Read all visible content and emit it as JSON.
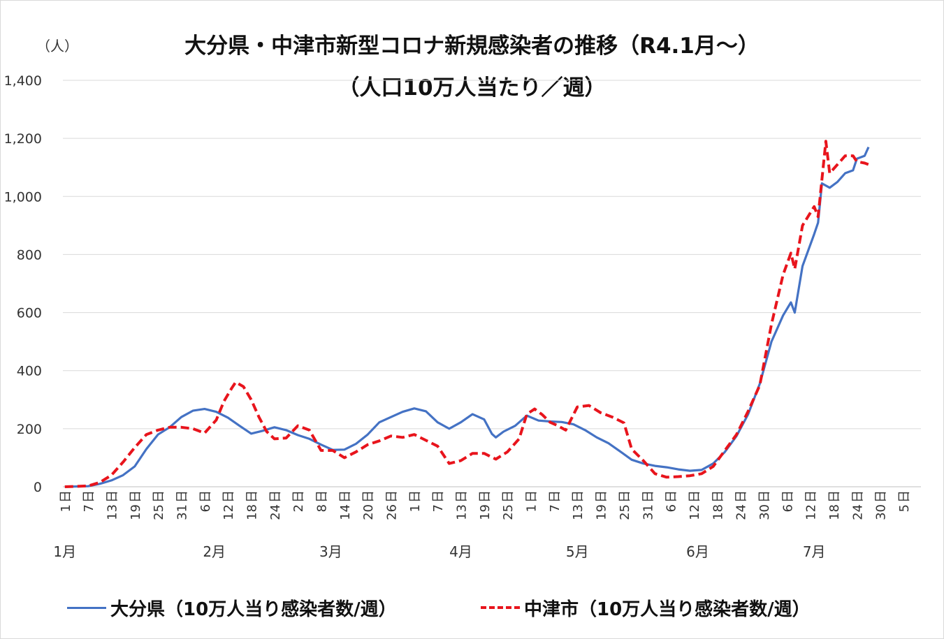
{
  "title_line1": "大分県・中津市新型コロナ新規感染者の推移（R4.1月～）",
  "title_line2": "（人口10万人当たり／週）",
  "y_unit": "（人）",
  "colors": {
    "oita": "#4472c4",
    "nakatsu": "#e8141c",
    "grid": "#d9d9d9",
    "axis": "#bfbfbf"
  },
  "chart_data": {
    "type": "line",
    "ylim": [
      0,
      1400
    ],
    "yticks": [
      "0",
      "200",
      "400",
      "600",
      "800",
      "1,000",
      "1,200",
      "1,400"
    ],
    "ytick_values": [
      0,
      200,
      400,
      600,
      800,
      1000,
      1200,
      1400
    ],
    "x_tick_labels": [
      "1",
      "7",
      "13",
      "19",
      "25",
      "31",
      "6",
      "12",
      "18",
      "24",
      "2",
      "8",
      "14",
      "20",
      "26",
      "1",
      "7",
      "13",
      "19",
      "25",
      "1",
      "7",
      "13",
      "19",
      "25",
      "31",
      "6",
      "12",
      "18",
      "24",
      "30",
      "6",
      "12",
      "18",
      "24",
      "30",
      "5"
    ],
    "month_labels": [
      {
        "label": "1月",
        "day": 1
      },
      {
        "label": "2月",
        "day": 39.5
      },
      {
        "label": "3月",
        "day": 69.5
      },
      {
        "label": "4月",
        "day": 103
      },
      {
        "label": "5月",
        "day": 133
      },
      {
        "label": "6月",
        "day": 164
      },
      {
        "label": "7月",
        "day": 194
      }
    ],
    "grid": true,
    "legend_position": "bottom",
    "series": [
      {
        "name": "大分県（10万人当り感染者数/週）",
        "style": "solid",
        "points": [
          [
            1,
            0
          ],
          [
            7,
            2
          ],
          [
            10,
            10
          ],
          [
            13,
            22
          ],
          [
            16,
            40
          ],
          [
            19,
            70
          ],
          [
            22,
            130
          ],
          [
            25,
            180
          ],
          [
            28,
            205
          ],
          [
            31,
            240
          ],
          [
            34,
            262
          ],
          [
            37,
            268
          ],
          [
            40,
            258
          ],
          [
            43,
            238
          ],
          [
            46,
            210
          ],
          [
            49,
            183
          ],
          [
            52,
            193
          ],
          [
            55,
            205
          ],
          [
            58,
            195
          ],
          [
            61,
            178
          ],
          [
            64,
            165
          ],
          [
            67,
            145
          ],
          [
            70,
            127
          ],
          [
            73,
            128
          ],
          [
            76,
            148
          ],
          [
            79,
            180
          ],
          [
            82,
            222
          ],
          [
            85,
            240
          ],
          [
            88,
            258
          ],
          [
            91,
            270
          ],
          [
            94,
            260
          ],
          [
            97,
            222
          ],
          [
            100,
            200
          ],
          [
            103,
            222
          ],
          [
            106,
            250
          ],
          [
            109,
            232
          ],
          [
            111,
            182
          ],
          [
            112,
            170
          ],
          [
            114,
            190
          ],
          [
            117,
            210
          ],
          [
            120,
            245
          ],
          [
            123,
            228
          ],
          [
            126,
            225
          ],
          [
            129,
            223
          ],
          [
            132,
            215
          ],
          [
            135,
            195
          ],
          [
            138,
            170
          ],
          [
            141,
            150
          ],
          [
            144,
            122
          ],
          [
            147,
            93
          ],
          [
            150,
            80
          ],
          [
            153,
            72
          ],
          [
            156,
            67
          ],
          [
            159,
            60
          ],
          [
            162,
            55
          ],
          [
            165,
            58
          ],
          [
            168,
            80
          ],
          [
            171,
            120
          ],
          [
            174,
            175
          ],
          [
            177,
            250
          ],
          [
            180,
            355
          ],
          [
            183,
            500
          ],
          [
            186,
            590
          ],
          [
            188,
            635
          ],
          [
            189,
            600
          ],
          [
            191,
            760
          ],
          [
            194,
            870
          ],
          [
            195,
            910
          ],
          [
            196,
            1045
          ],
          [
            198,
            1030
          ],
          [
            200,
            1050
          ],
          [
            202,
            1080
          ],
          [
            204,
            1090
          ],
          [
            205,
            1130
          ],
          [
            207,
            1140
          ],
          [
            208,
            1170
          ]
        ]
      },
      {
        "name": "中津市（10万人当り感染者数/週）",
        "style": "dashed",
        "points": [
          [
            1,
            0
          ],
          [
            7,
            3
          ],
          [
            10,
            15
          ],
          [
            13,
            40
          ],
          [
            16,
            85
          ],
          [
            19,
            135
          ],
          [
            22,
            180
          ],
          [
            25,
            195
          ],
          [
            28,
            205
          ],
          [
            31,
            205
          ],
          [
            34,
            200
          ],
          [
            37,
            185
          ],
          [
            40,
            230
          ],
          [
            42,
            295
          ],
          [
            44,
            340
          ],
          [
            45,
            360
          ],
          [
            47,
            345
          ],
          [
            49,
            300
          ],
          [
            51,
            240
          ],
          [
            53,
            190
          ],
          [
            55,
            165
          ],
          [
            58,
            168
          ],
          [
            61,
            210
          ],
          [
            64,
            195
          ],
          [
            67,
            125
          ],
          [
            70,
            125
          ],
          [
            73,
            100
          ],
          [
            76,
            120
          ],
          [
            79,
            145
          ],
          [
            82,
            158
          ],
          [
            85,
            175
          ],
          [
            88,
            170
          ],
          [
            91,
            180
          ],
          [
            94,
            160
          ],
          [
            97,
            140
          ],
          [
            100,
            80
          ],
          [
            103,
            90
          ],
          [
            106,
            115
          ],
          [
            109,
            115
          ],
          [
            112,
            95
          ],
          [
            115,
            120
          ],
          [
            118,
            165
          ],
          [
            120,
            250
          ],
          [
            122,
            268
          ],
          [
            124,
            248
          ],
          [
            126,
            222
          ],
          [
            128,
            210
          ],
          [
            130,
            195
          ],
          [
            133,
            275
          ],
          [
            136,
            280
          ],
          [
            139,
            255
          ],
          [
            142,
            240
          ],
          [
            145,
            220
          ],
          [
            147,
            130
          ],
          [
            150,
            90
          ],
          [
            153,
            45
          ],
          [
            156,
            33
          ],
          [
            159,
            35
          ],
          [
            162,
            38
          ],
          [
            165,
            45
          ],
          [
            168,
            70
          ],
          [
            171,
            125
          ],
          [
            174,
            180
          ],
          [
            177,
            260
          ],
          [
            180,
            350
          ],
          [
            183,
            560
          ],
          [
            186,
            730
          ],
          [
            188,
            805
          ],
          [
            189,
            750
          ],
          [
            191,
            900
          ],
          [
            194,
            965
          ],
          [
            195,
            930
          ],
          [
            197,
            1190
          ],
          [
            198,
            1080
          ],
          [
            200,
            1110
          ],
          [
            202,
            1140
          ],
          [
            204,
            1140
          ],
          [
            205,
            1120
          ],
          [
            207,
            1115
          ],
          [
            208,
            1110
          ]
        ]
      }
    ]
  }
}
